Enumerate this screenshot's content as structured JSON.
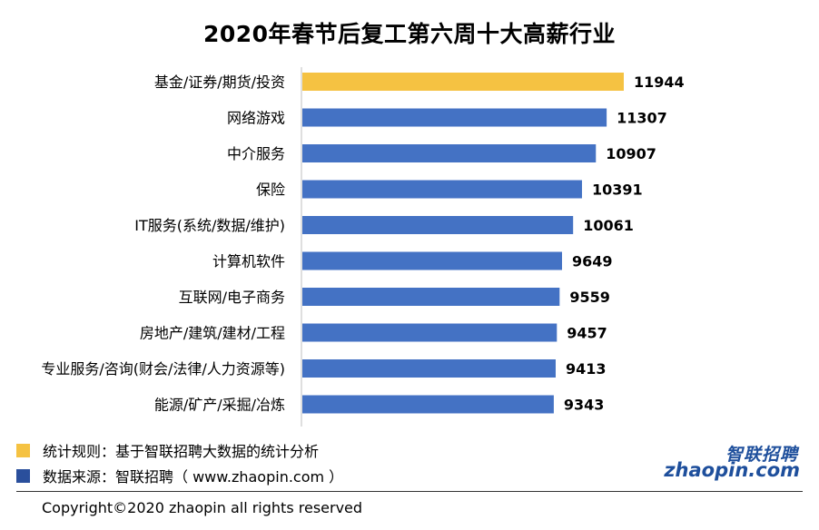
{
  "chart_data": {
    "type": "bar",
    "orientation": "horizontal",
    "title": "2020年春节后复工第六周十大高薪行业",
    "categories": [
      "基金/证券/期货/投资",
      "网络游戏",
      "中介服务",
      "保险",
      "IT服务(系统/数据/维护)",
      "计算机软件",
      "互联网/电子商务",
      "房地产/建筑/建材/工程",
      "专业服务/咨询(财会/法律/人力资源等)",
      "能源/矿产/采掘/冶炼"
    ],
    "values": [
      11944,
      11307,
      10907,
      10391,
      10061,
      9649,
      9559,
      9457,
      9413,
      9343
    ],
    "highlight_index": 0,
    "highlight_color": "#f5c242",
    "bar_color": "#4472c4",
    "xlim": [
      0,
      13000
    ],
    "grid": false,
    "xlabel": "",
    "ylabel": ""
  },
  "legend": [
    {
      "color": "#f5c242",
      "text": "统计规则：基于智联招聘大数据的统计分析"
    },
    {
      "color": "#2a4f9c",
      "text": "数据来源：智联招聘（ www.zhaopin.com ）"
    }
  ],
  "brand": {
    "cn": "智联招聘",
    "en": "zhaopin.com"
  },
  "copyright": "Copyright©2020 zhaopin all rights reserved"
}
